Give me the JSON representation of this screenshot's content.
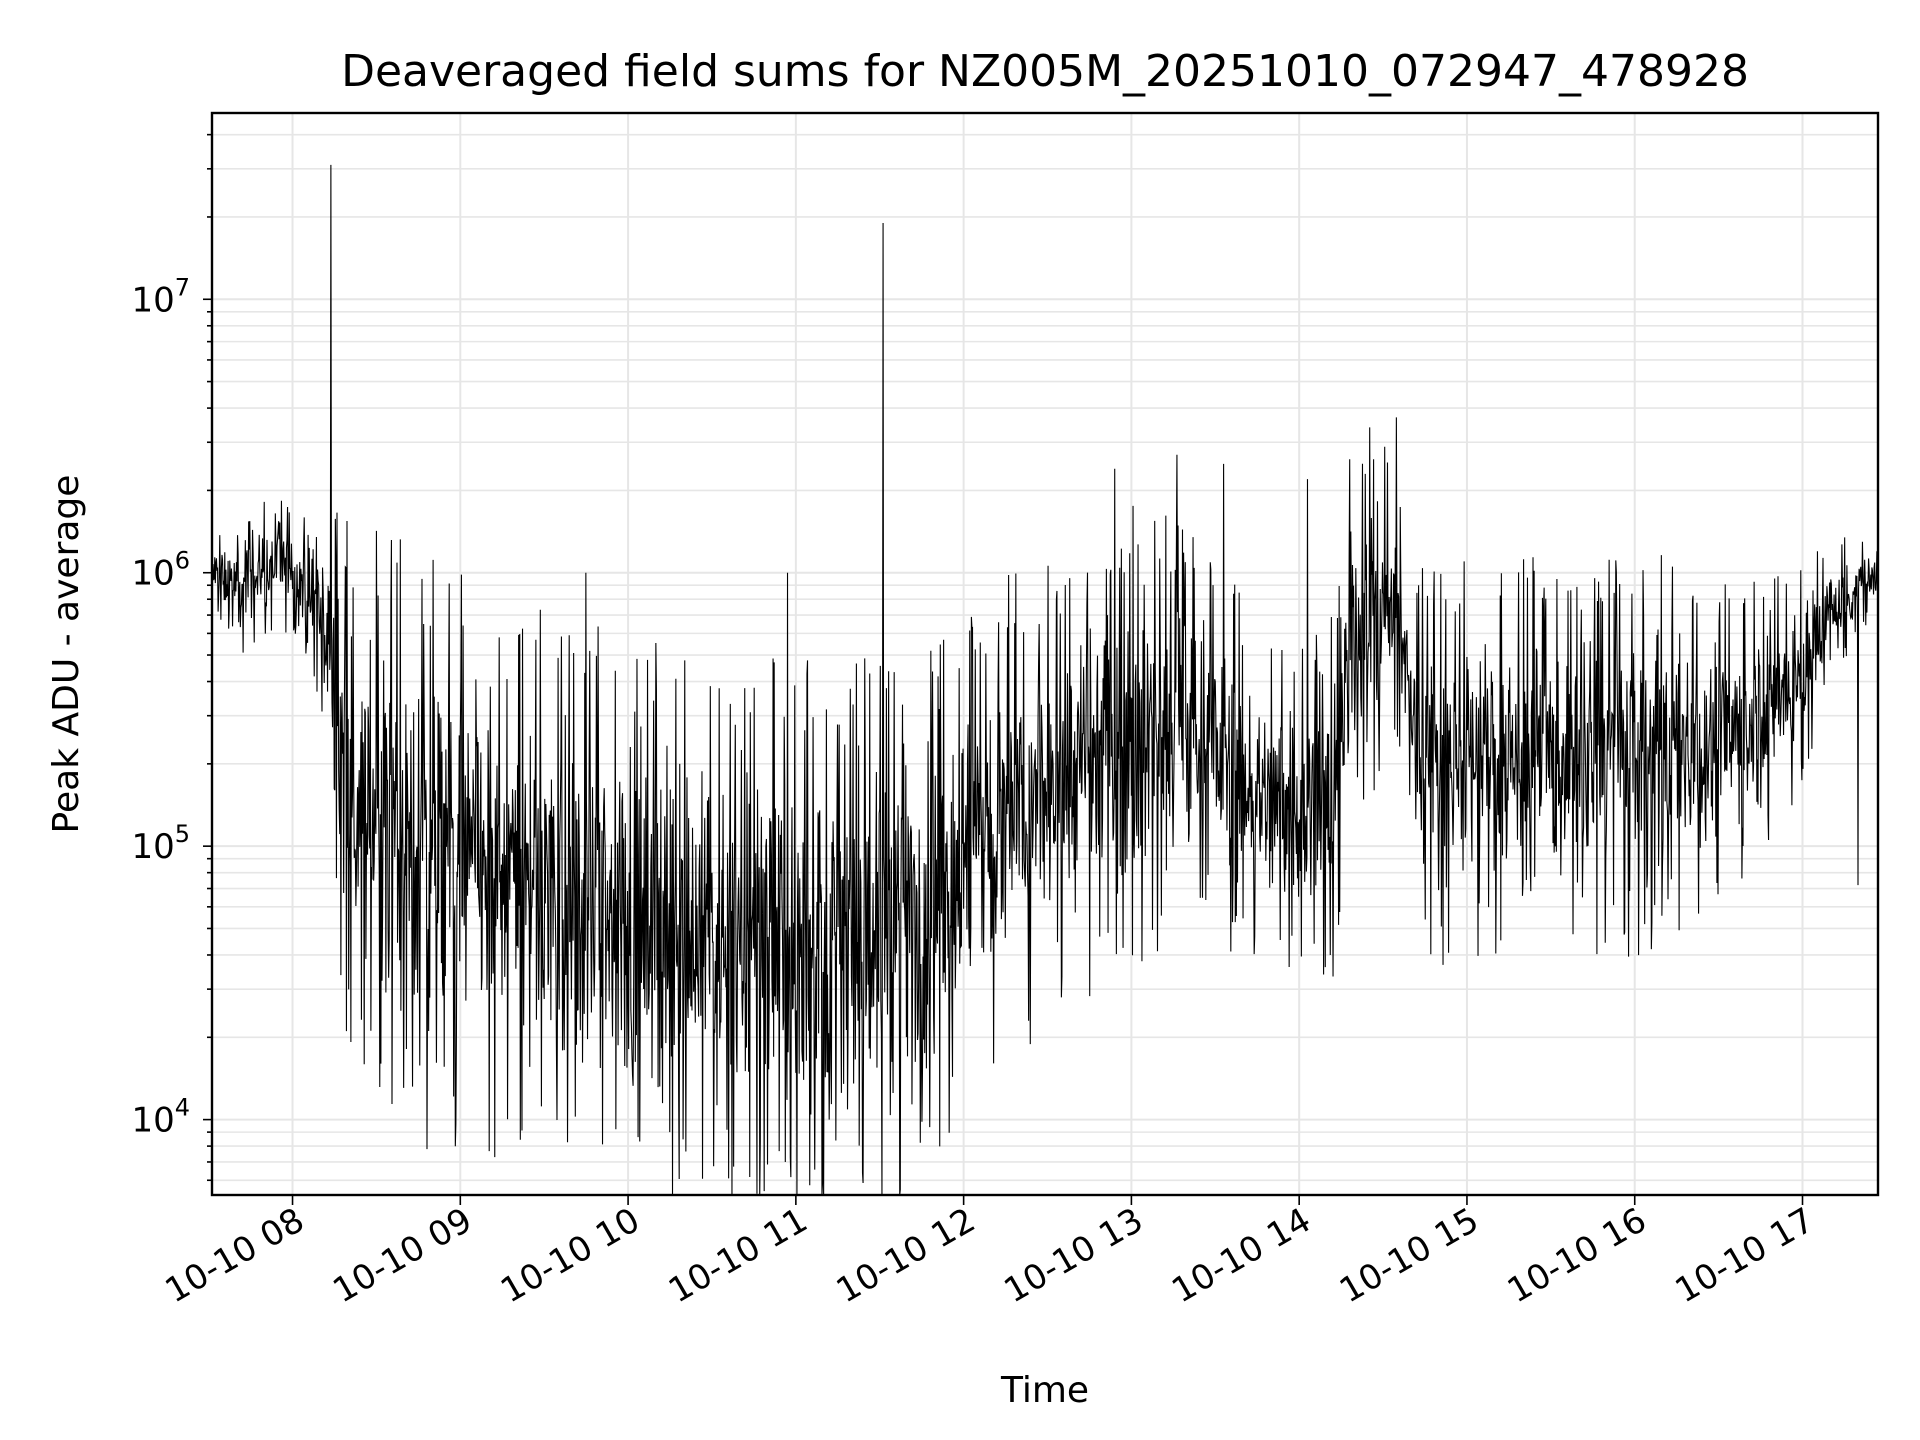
{
  "chart_data": {
    "type": "line",
    "title": "Deaveraged field sums for NZ005M_20251010_072947_478928",
    "xlabel": "Time",
    "ylabel": "Peak ADU - average",
    "yscale": "log",
    "ylim": [
      5300,
      48000000
    ],
    "xlim_hours": [
      7.52,
      17.45
    ],
    "grid": "major and minor",
    "line_color": "#000000",
    "x_ticks": [
      {
        "label": "10-10 08",
        "hour": 8
      },
      {
        "label": "10-10 09",
        "hour": 9
      },
      {
        "label": "10-10 10",
        "hour": 10
      },
      {
        "label": "10-10 11",
        "hour": 11
      },
      {
        "label": "10-10 12",
        "hour": 12
      },
      {
        "label": "10-10 13",
        "hour": 13
      },
      {
        "label": "10-10 14",
        "hour": 14
      },
      {
        "label": "10-10 15",
        "hour": 15
      },
      {
        "label": "10-10 16",
        "hour": 16
      },
      {
        "label": "10-10 17",
        "hour": 17
      }
    ],
    "y_ticks": [
      {
        "base": "10",
        "exp": "4",
        "value": 10000
      },
      {
        "base": "10",
        "exp": "5",
        "value": 100000
      },
      {
        "base": "10",
        "exp": "6",
        "value": 1000000
      },
      {
        "base": "10",
        "exp": "7",
        "value": 10000000
      }
    ],
    "series": [
      {
        "name": "deaveraged field sum",
        "x_hours": [
          7.52,
          7.6,
          7.7,
          7.8,
          7.9,
          8.0,
          8.1,
          8.2,
          8.25,
          8.3,
          8.4,
          8.5,
          8.6,
          8.7,
          8.8,
          8.9,
          9.0,
          9.25,
          9.5,
          9.75,
          10.0,
          10.25,
          10.5,
          10.75,
          11.0,
          11.25,
          11.5,
          11.75,
          12.0,
          12.25,
          12.5,
          12.75,
          13.0,
          13.25,
          13.5,
          13.75,
          14.0,
          14.2,
          14.4,
          14.55,
          14.7,
          14.9,
          15.1,
          15.3,
          15.5,
          15.75,
          16.0,
          16.25,
          16.5,
          16.75,
          17.0,
          17.2,
          17.45
        ],
        "center_values": [
          1000000,
          950000,
          850000,
          1000000,
          1100000,
          1050000,
          800000,
          650000,
          350000,
          200000,
          150000,
          130000,
          120000,
          110000,
          100000,
          95000,
          90000,
          80000,
          70000,
          60000,
          55000,
          50000,
          48000,
          45000,
          42000,
          40000,
          45000,
          60000,
          85000,
          115000,
          150000,
          200000,
          260000,
          280000,
          230000,
          150000,
          140000,
          145000,
          650000,
          700000,
          200000,
          200000,
          220000,
          210000,
          200000,
          210000,
          220000,
          230000,
          240000,
          300000,
          450000,
          750000,
          1000000
        ],
        "spread_decades": [
          0.12,
          0.15,
          0.18,
          0.2,
          0.2,
          0.2,
          0.25,
          0.3,
          0.6,
          0.8,
          0.85,
          0.85,
          0.85,
          0.85,
          0.85,
          0.85,
          0.85,
          0.85,
          0.85,
          0.85,
          0.85,
          0.85,
          0.85,
          0.85,
          0.85,
          0.85,
          0.85,
          0.85,
          0.8,
          0.75,
          0.7,
          0.7,
          0.7,
          0.65,
          0.6,
          0.5,
          0.5,
          0.55,
          0.55,
          0.55,
          0.6,
          0.6,
          0.6,
          0.6,
          0.6,
          0.6,
          0.6,
          0.55,
          0.5,
          0.45,
          0.35,
          0.2,
          0.12
        ],
        "spikes": [
          {
            "hour": 8.23,
            "value": 31000000
          },
          {
            "hour": 11.52,
            "value": 19000000
          },
          {
            "hour": 12.9,
            "value": 2400000
          },
          {
            "hour": 13.27,
            "value": 2700000
          },
          {
            "hour": 13.55,
            "value": 2500000
          },
          {
            "hour": 14.05,
            "value": 2200000
          },
          {
            "hour": 14.3,
            "value": 2600000
          },
          {
            "hour": 14.42,
            "value": 3400000
          },
          {
            "hour": 14.58,
            "value": 3700000
          },
          {
            "hour": 10.95,
            "value": 1000000
          },
          {
            "hour": 9.75,
            "value": 1000000
          },
          {
            "hour": 8.8,
            "value": 7800
          },
          {
            "hour": 10.25,
            "value": 9000
          },
          {
            "hour": 11.2,
            "value": 10000
          },
          {
            "hour": 17.33,
            "value": 72000
          },
          {
            "hour": 16.1,
            "value": 42000
          }
        ]
      }
    ]
  }
}
